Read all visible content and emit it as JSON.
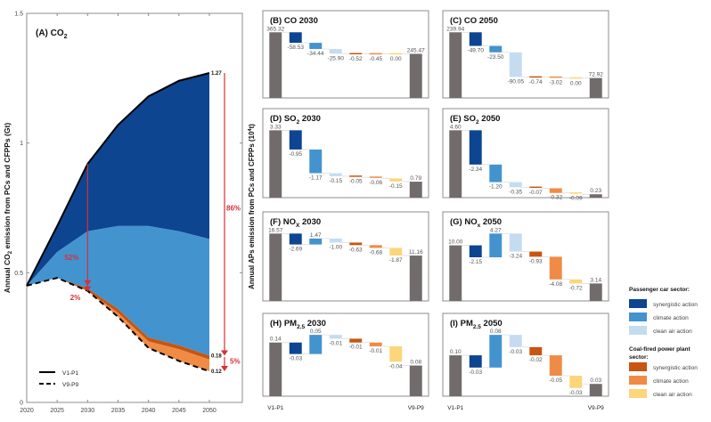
{
  "chart_data": [
    {
      "id": "A",
      "type": "area",
      "title": "(A) CO",
      "title_sub": "2",
      "ylabel": "Annual CO2 emission from PCs and CFPPs (Gt)",
      "ylabel_parts": [
        "Annual CO",
        "2",
        " emission from PCs and CFPPs (Gt)"
      ],
      "x": [
        2020,
        2025,
        2030,
        2035,
        2040,
        2045,
        2050
      ],
      "xticks": [
        "2020",
        "2025",
        "2030",
        "2035",
        "2040",
        "2045",
        "2050"
      ],
      "yticks": [
        "0",
        "0.5",
        "1",
        "1.5"
      ],
      "ytick_values": [
        0,
        0.5,
        1,
        1.5
      ],
      "ylim": [
        0,
        1.5
      ],
      "xlim": [
        2020,
        2052
      ],
      "series": [
        {
          "name": "V1-P1",
          "style": "solid",
          "values": [
            0.45,
            0.68,
            0.92,
            1.07,
            1.18,
            1.24,
            1.27
          ]
        },
        {
          "name": "pc-climate-top",
          "values": [
            0.45,
            0.58,
            0.66,
            0.68,
            0.68,
            0.66,
            0.63
          ]
        },
        {
          "name": "cfpp-synergistic-top",
          "values": [
            0.45,
            0.48,
            0.44,
            0.36,
            0.25,
            0.22,
            0.18
          ]
        },
        {
          "name": "V9-P9",
          "style": "dashed",
          "values": [
            0.45,
            0.48,
            0.43,
            0.33,
            0.21,
            0.16,
            0.12
          ]
        }
      ],
      "fills": [
        "#0d4590",
        "#4393cf",
        "#c85510",
        "#f08b45"
      ],
      "end_labels": [
        "1.27",
        "0.18",
        "0.12"
      ],
      "annotations": [
        {
          "text": "52%",
          "x": 2030
        },
        {
          "text": "2%",
          "x": 2030
        },
        {
          "text": "86%",
          "x": 2050
        },
        {
          "text": "5%",
          "x": 2050
        }
      ],
      "legend": [
        {
          "label": "V1-P1",
          "style": "solid"
        },
        {
          "label": "V9-P9",
          "style": "dashed"
        }
      ],
      "legend_position": "bottom-left"
    },
    {
      "id": "B",
      "type": "waterfall",
      "title": "(B) CO 2030",
      "title_parts": [
        "(B) CO 2030",
        ""
      ],
      "start": 365.32,
      "deltas": [
        -58.53,
        -34.44,
        -25.9,
        -0.52,
        -0.45,
        0.0
      ],
      "end": 245.47,
      "labels": [
        "365.32",
        "-58.53",
        "-34.44",
        "-25.90",
        "-0.52",
        "-0.45",
        "0.00",
        "245.47"
      ]
    },
    {
      "id": "C",
      "type": "waterfall",
      "title": "(C) CO 2050",
      "start": 239.94,
      "deltas": [
        -49.7,
        -23.5,
        -90.05,
        -0.74,
        -3.02,
        0.0
      ],
      "end": 72.92,
      "labels": [
        "239.94",
        "-49.70",
        "-23.50",
        "-90.05",
        "-0.74",
        "-3.02",
        "0.00",
        "72.92"
      ]
    },
    {
      "id": "D",
      "type": "waterfall",
      "title": "(D) SO",
      "title_sub": "2",
      "title_tail": " 2030",
      "start": 3.33,
      "deltas": [
        -0.95,
        -1.17,
        -0.15,
        -0.05,
        -0.06,
        -0.15
      ],
      "end": 0.79,
      "labels": [
        "3.33",
        "-0.95",
        "-1.17",
        "-0.15",
        "-0.05",
        "-0.06",
        "-0.15",
        "0.79"
      ]
    },
    {
      "id": "E",
      "type": "waterfall",
      "title": "(E) SO",
      "title_sub": "2",
      "title_tail": " 2050",
      "start": 4.6,
      "deltas": [
        -2.34,
        -1.2,
        -0.35,
        -0.07,
        -0.32,
        -0.09
      ],
      "end": 0.23,
      "labels": [
        "4.60",
        "-2.34",
        "-1.20",
        "-0.35",
        "-0.07",
        "-0.32",
        "-0.09",
        "0.23"
      ]
    },
    {
      "id": "F",
      "type": "waterfall",
      "title": "(F) NO",
      "title_sub": "X",
      "title_tail": " 2030",
      "start": 16.57,
      "deltas": [
        -2.69,
        1.47,
        -1.0,
        -0.63,
        -0.68,
        -1.87
      ],
      "end": 11.16,
      "labels": [
        "16.57",
        "-2.69",
        "1.47",
        "-1.00",
        "-0.63",
        "-0.68",
        "-1.87",
        "11.16"
      ]
    },
    {
      "id": "G",
      "type": "waterfall",
      "title": "(G) NO",
      "title_sub": "x",
      "title_tail": " 2050",
      "start": 10.0,
      "deltas": [
        -2.15,
        4.27,
        -3.24,
        -0.93,
        -4.08,
        -0.72
      ],
      "end": 3.14,
      "labels": [
        "10.00",
        "-2.15",
        "4.27",
        "-3.24",
        "-0.93",
        "-4.08",
        "-0.72",
        "3.14"
      ]
    },
    {
      "id": "H",
      "type": "waterfall",
      "title": "(H) PM",
      "title_sub": "2.5",
      "title_tail": " 2030",
      "start": 0.14,
      "deltas": [
        -0.03,
        0.05,
        -0.01,
        -0.01,
        -0.01,
        -0.04
      ],
      "end": 0.08,
      "labels": [
        "0.14",
        "-0.03",
        "0.05",
        "-0.01",
        "-0.01",
        "-0.01",
        "-0.04",
        "0.08"
      ]
    },
    {
      "id": "I",
      "type": "waterfall",
      "title": "(I) PM",
      "title_sub": "2.5",
      "title_tail": " 2050",
      "start": 0.1,
      "deltas": [
        -0.03,
        0.08,
        -0.03,
        -0.02,
        -0.05,
        -0.03
      ],
      "end": 0.03,
      "labels": [
        "0.10",
        "-0.03",
        "0.08",
        "-0.03",
        "-0.02",
        "-0.05",
        "-0.03",
        "0.03"
      ]
    }
  ],
  "waterfall_common": {
    "ylabel_parts": [
      "Annual APs emission from PCs and CFPPs (10",
      "4",
      "t)"
    ],
    "x_start_label": "V1-P1",
    "x_end_label": "V9-P9",
    "bar_colors": [
      "#716c6b",
      "#0d4590",
      "#4393cf",
      "#c5dcf0",
      "#c85510",
      "#f08b45",
      "#fdd57a",
      "#716c6b"
    ]
  },
  "legend": {
    "groups": [
      {
        "title": "Passenger car sector:",
        "items": [
          {
            "label": "synergistic action",
            "color": "#0d4590"
          },
          {
            "label": "climate action",
            "color": "#4393cf"
          },
          {
            "label": "clean air action",
            "color": "#c5dcf0"
          }
        ]
      },
      {
        "title_lines": [
          "Coal-fired power plant",
          "sector:"
        ],
        "items": [
          {
            "label": "synergistic action",
            "color": "#c85510"
          },
          {
            "label": "climate action",
            "color": "#f08b45"
          },
          {
            "label": "clean air action",
            "color": "#fdd57a"
          }
        ]
      }
    ]
  },
  "colors": {
    "annotation_red": "#d4303a",
    "frame": "#8c8c8c",
    "text_gray": "#555555"
  }
}
